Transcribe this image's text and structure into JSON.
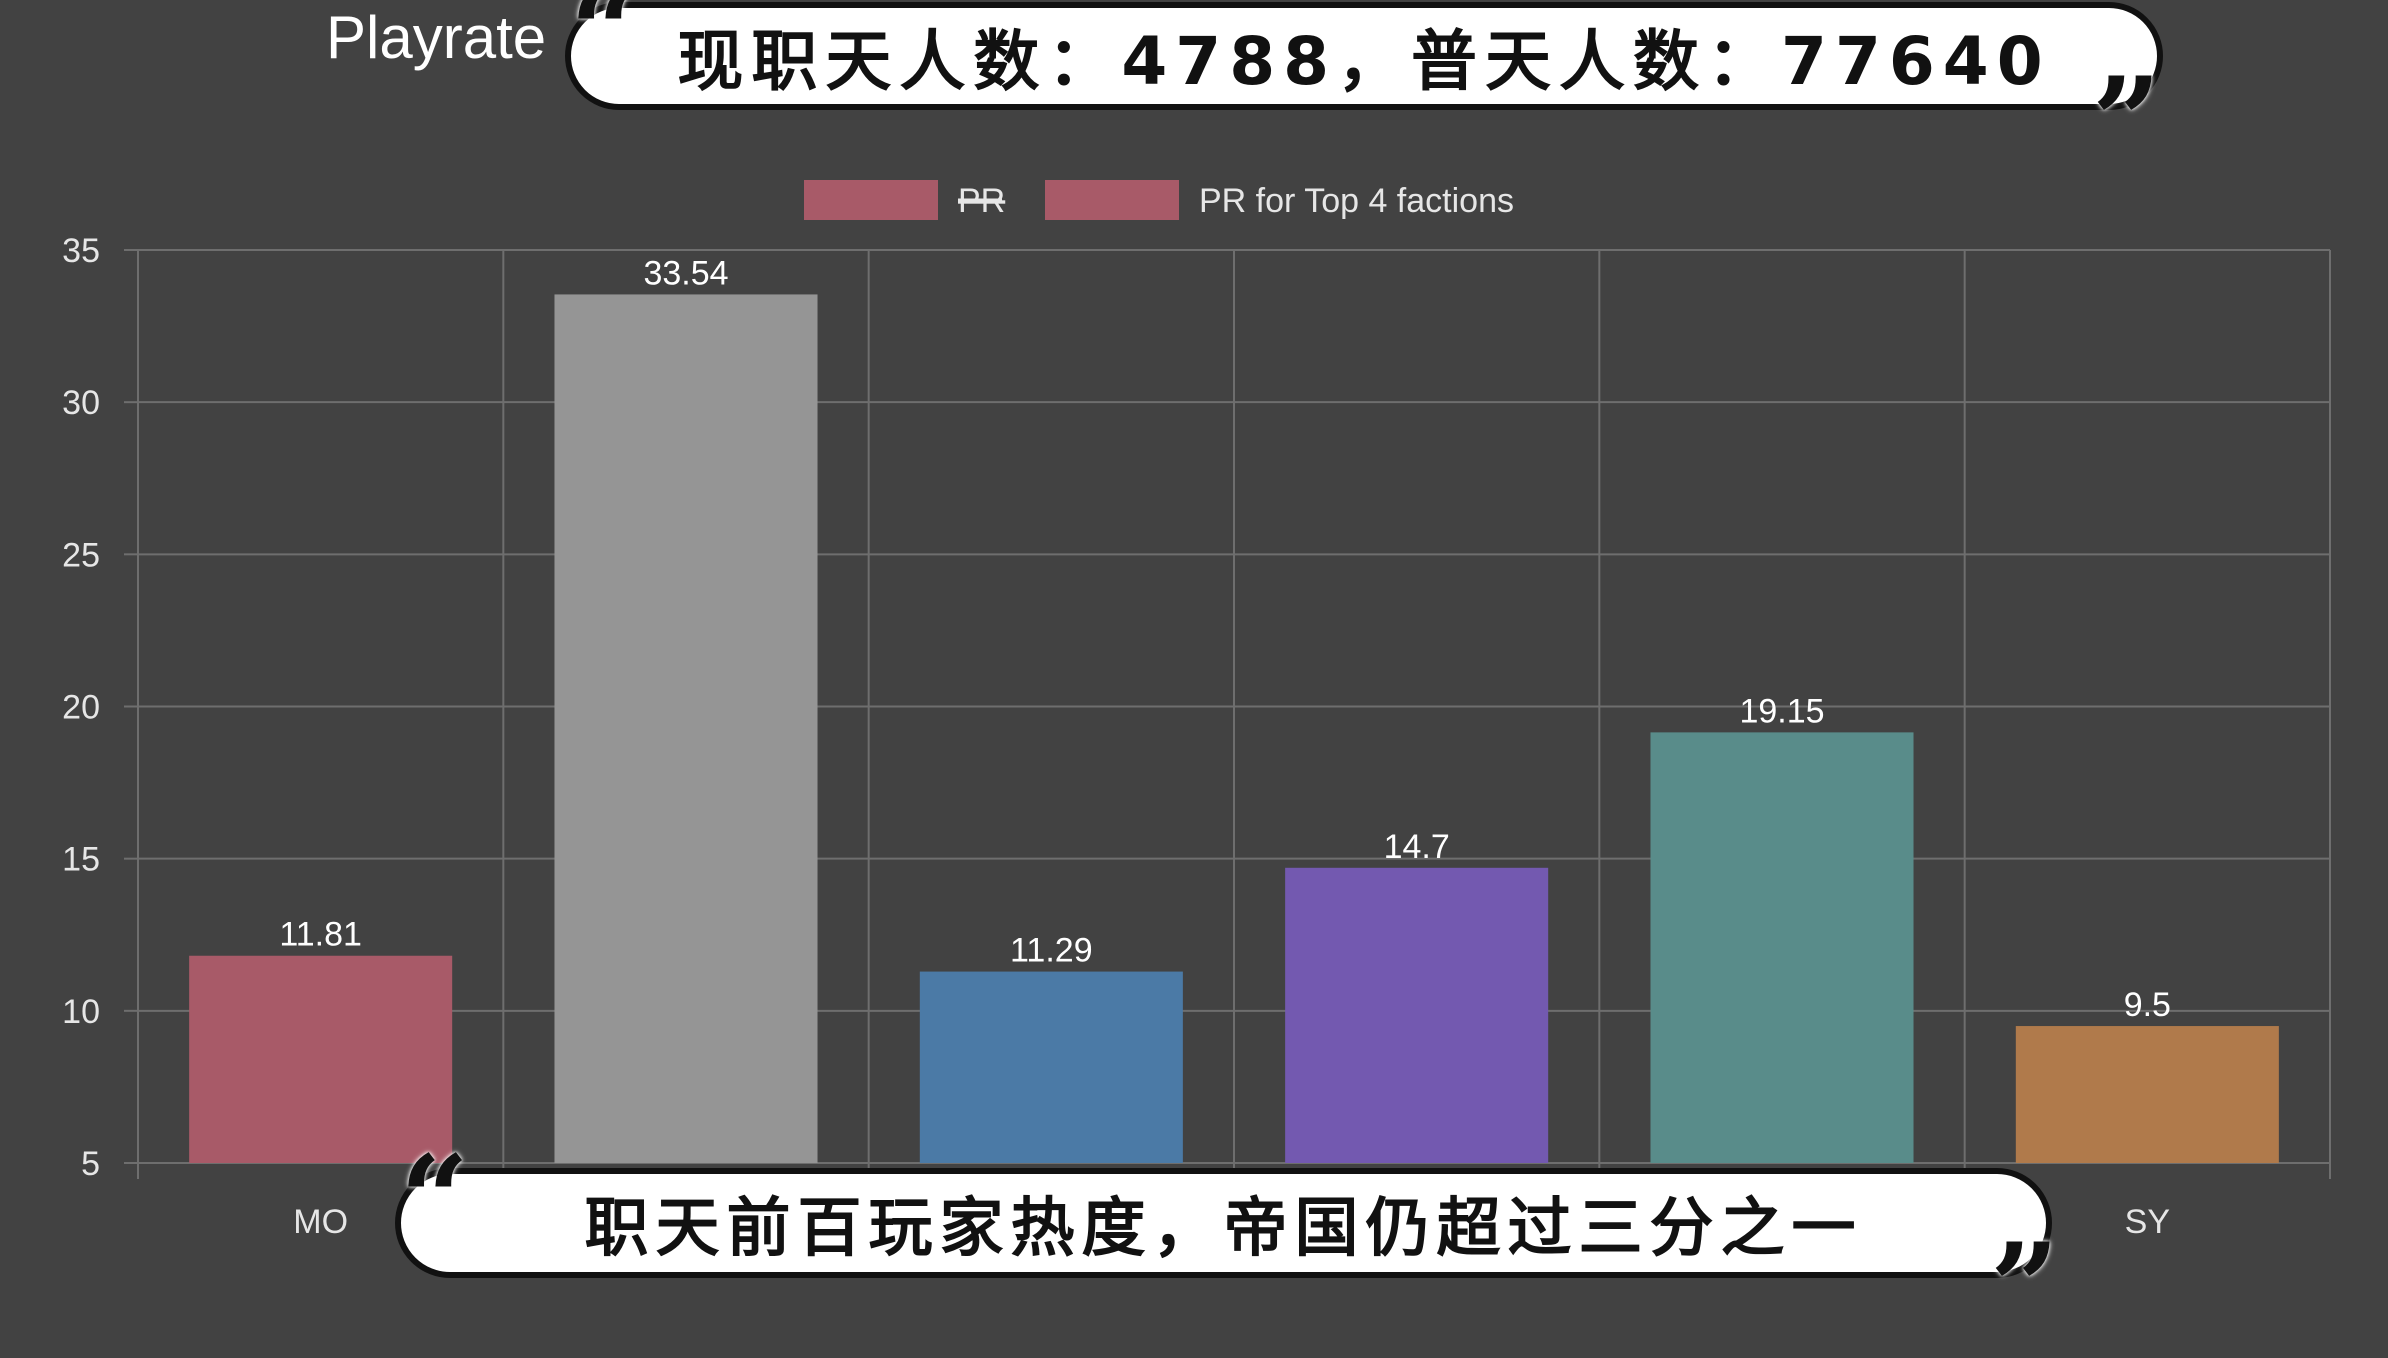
{
  "captions": {
    "top": "现职天人数：4788，普天人数：77640",
    "bottom": "职天前百玩家热度，帝国仍超过三分之一",
    "open_quote": "“",
    "close_quote": "”"
  },
  "chart_data": {
    "type": "bar",
    "title": "Playrate",
    "legend": [
      {
        "label": "PR",
        "struck": true,
        "color": "#a85a68"
      },
      {
        "label": "PR for Top 4 factions",
        "struck": false,
        "color": "#a85a68"
      }
    ],
    "legend_position": "top-center",
    "categories": [
      "MO",
      "",
      "",
      "",
      "",
      "SY"
    ],
    "values": [
      11.81,
      33.54,
      11.29,
      14.7,
      19.15,
      9.5
    ],
    "data_labels": [
      "11.81",
      "33.54",
      "11.29",
      "14.7",
      "19.15",
      "9.5"
    ],
    "colors": [
      "#a85a68",
      "#959595",
      "#4b7aa6",
      "#7359b0",
      "#598c8a",
      "#b07a4b"
    ],
    "ylim": [
      5,
      35
    ],
    "yticks": [
      5,
      10,
      15,
      20,
      25,
      30,
      35
    ],
    "grid": true,
    "background": "#424242",
    "grid_color": "#6e6e6e"
  }
}
